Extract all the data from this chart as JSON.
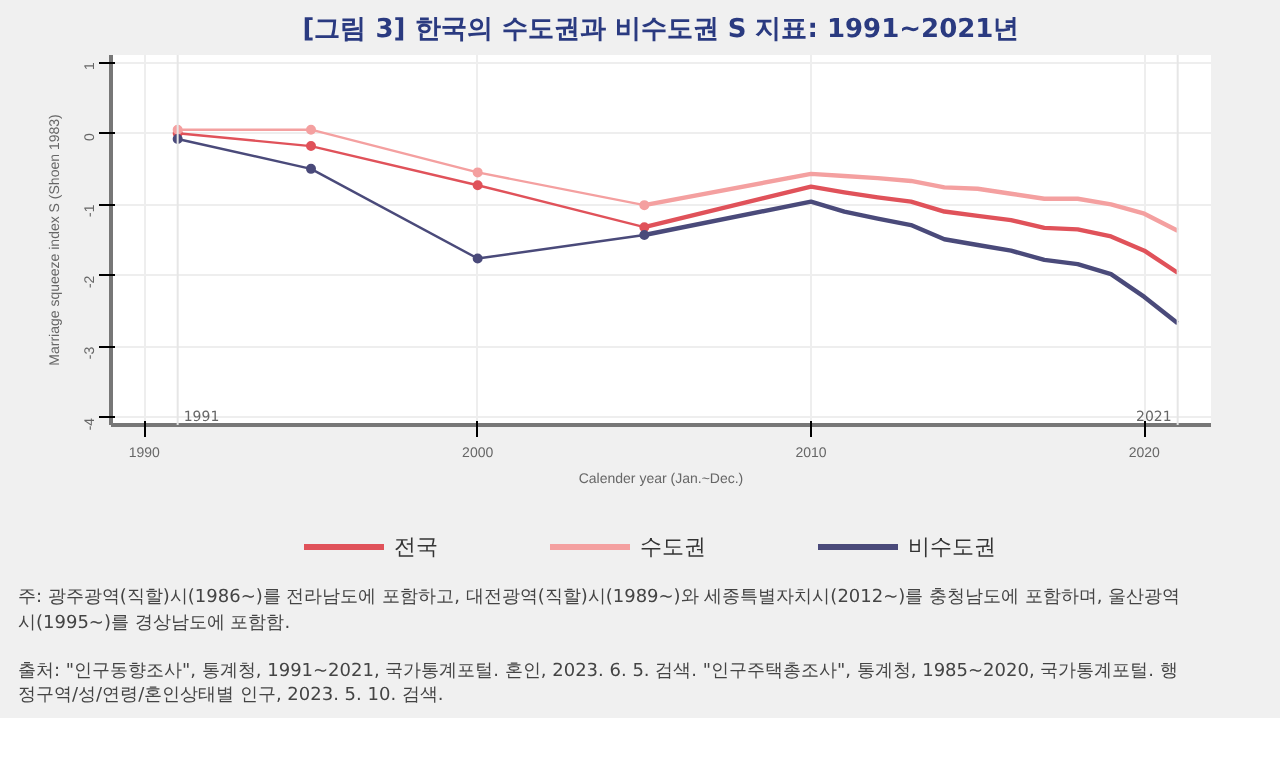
{
  "chart_data": {
    "type": "line",
    "title": "[그림 3] 한국의 수도권과 비수도권 S 지표: 1991~2021년",
    "xlabel": "Calender year (Jan.~Dec.)",
    "ylabel": "Marriage squeeze index S (Shoen 1983)",
    "series": [
      {
        "name": "전국",
        "color": "#e0525a",
        "marker": "none",
        "x": [
          2005,
          2010,
          2011,
          2012,
          2013,
          2014,
          2015,
          2016,
          2017,
          2018,
          2019,
          2020,
          2021
        ],
        "values": [
          -1.32,
          -0.75,
          -0.83,
          -0.9,
          -0.96,
          -1.1,
          -1.16,
          -1.22,
          -1.33,
          -1.35,
          -1.45,
          -1.65,
          -1.96
        ]
      },
      {
        "name": "수도권",
        "color": "#f4a0a0",
        "marker": "none",
        "x": [
          2005,
          2010,
          2011,
          2012,
          2013,
          2014,
          2015,
          2016,
          2017,
          2018,
          2019,
          2020,
          2021
        ],
        "values": [
          -1.01,
          -0.57,
          -0.6,
          -0.63,
          -0.67,
          -0.76,
          -0.78,
          -0.85,
          -0.92,
          -0.92,
          -1.0,
          -1.13,
          -1.37
        ]
      },
      {
        "name": "비수도권",
        "color": "#4a4a7a",
        "marker": "none",
        "x": [
          2005,
          2010,
          2011,
          2012,
          2013,
          2014,
          2015,
          2016,
          2017,
          2018,
          2019,
          2020,
          2021
        ],
        "values": [
          -1.43,
          -0.96,
          -1.1,
          -1.2,
          -1.29,
          -1.49,
          -1.57,
          -1.65,
          -1.78,
          -1.84,
          -1.98,
          -2.3,
          -2.67
        ]
      },
      {
        "color": "#e0525a",
        "marker": "circle",
        "x": [
          1991,
          1995,
          2000,
          2005
        ],
        "values": [
          0.0,
          -0.18,
          -0.73,
          -1.32
        ]
      },
      {
        "color": "#f4a0a0",
        "marker": "circle",
        "x": [
          1991,
          1995,
          2000,
          2005
        ],
        "values": [
          0.05,
          0.05,
          -0.55,
          -1.01
        ]
      },
      {
        "color": "#4a4a7a",
        "marker": "circle",
        "x": [
          1991,
          1995,
          2000,
          2005
        ],
        "values": [
          -0.08,
          -0.5,
          -1.76,
          -1.43
        ]
      }
    ],
    "xlim": [
      1989,
      2022
    ],
    "xticks": [
      1990,
      2000,
      2010,
      2020
    ],
    "ylim": [
      -4.1,
      1.1
    ],
    "yticks": [
      -4,
      -3,
      -2,
      -1,
      0,
      1
    ],
    "grid": true,
    "legend": "bottom",
    "ref_lines": [
      {
        "axis": "x",
        "value": 1991,
        "label": "1991"
      },
      {
        "axis": "x",
        "value": 2021,
        "label": "2021"
      }
    ],
    "annotations": [
      "주: 광주광역(직할)시(1986~)를 전라남도에 포함하고, 대전광역(직할)시(1989~)와 세종특별자치시(2012~)를 충청남도에 포함하며, 울산광역시(1995~)를 경상남도에 포함함.",
      "출처: \"인구동향조사\", 통계청, 1991~2021, 국가통계포털. 혼인, 2023. 6. 5. 검색. \"인구주택총조사\", 통계청, 1985~2020, 국가통계포털. 행정구역/성/연령/혼인상태별 인구, 2023. 5. 10. 검색."
    ]
  }
}
